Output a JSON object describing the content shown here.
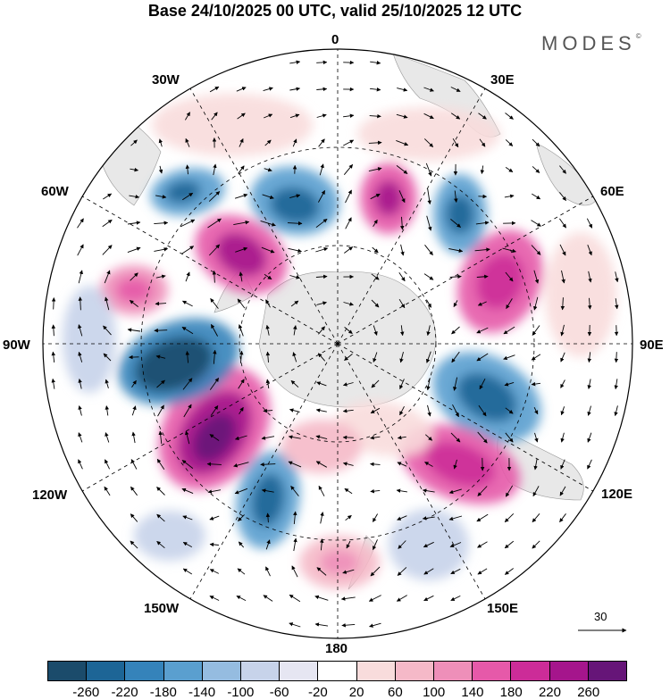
{
  "title": "Base 24/10/2025 00 UTC, valid 25/10/2025 12 UTC",
  "brand": "MODES",
  "brand_mark": "©",
  "meridian_labels": {
    "lon_0": "0",
    "lon_30e": "30E",
    "lon_60e": "60E",
    "lon_90e": "90E",
    "lon_120e": "120E",
    "lon_150e": "150E",
    "lon_180": "180",
    "lon_150w": "150W",
    "lon_120w": "120W",
    "lon_90w": "90W",
    "lon_60w": "60W",
    "lon_30w": "30W"
  },
  "reference_vector": {
    "value": "30"
  },
  "colorbar": {
    "colors": [
      "#1b4b6b",
      "#1d6596",
      "#3583ba",
      "#5a9fcf",
      "#95bce0",
      "#c7d3ea",
      "#e6e6f2",
      "#ffffff",
      "#f8dcdc",
      "#f5b9c8",
      "#ee8fb9",
      "#e659a9",
      "#cc2c98",
      "#a5158c",
      "#661578"
    ],
    "ticks": [
      "-260",
      "-220",
      "-180",
      "-140",
      "-100",
      "-60",
      "-20",
      "20",
      "60",
      "100",
      "140",
      "180",
      "220",
      "260"
    ]
  },
  "colors": {
    "land": "#e8e8e8",
    "background": "#ffffff"
  }
}
